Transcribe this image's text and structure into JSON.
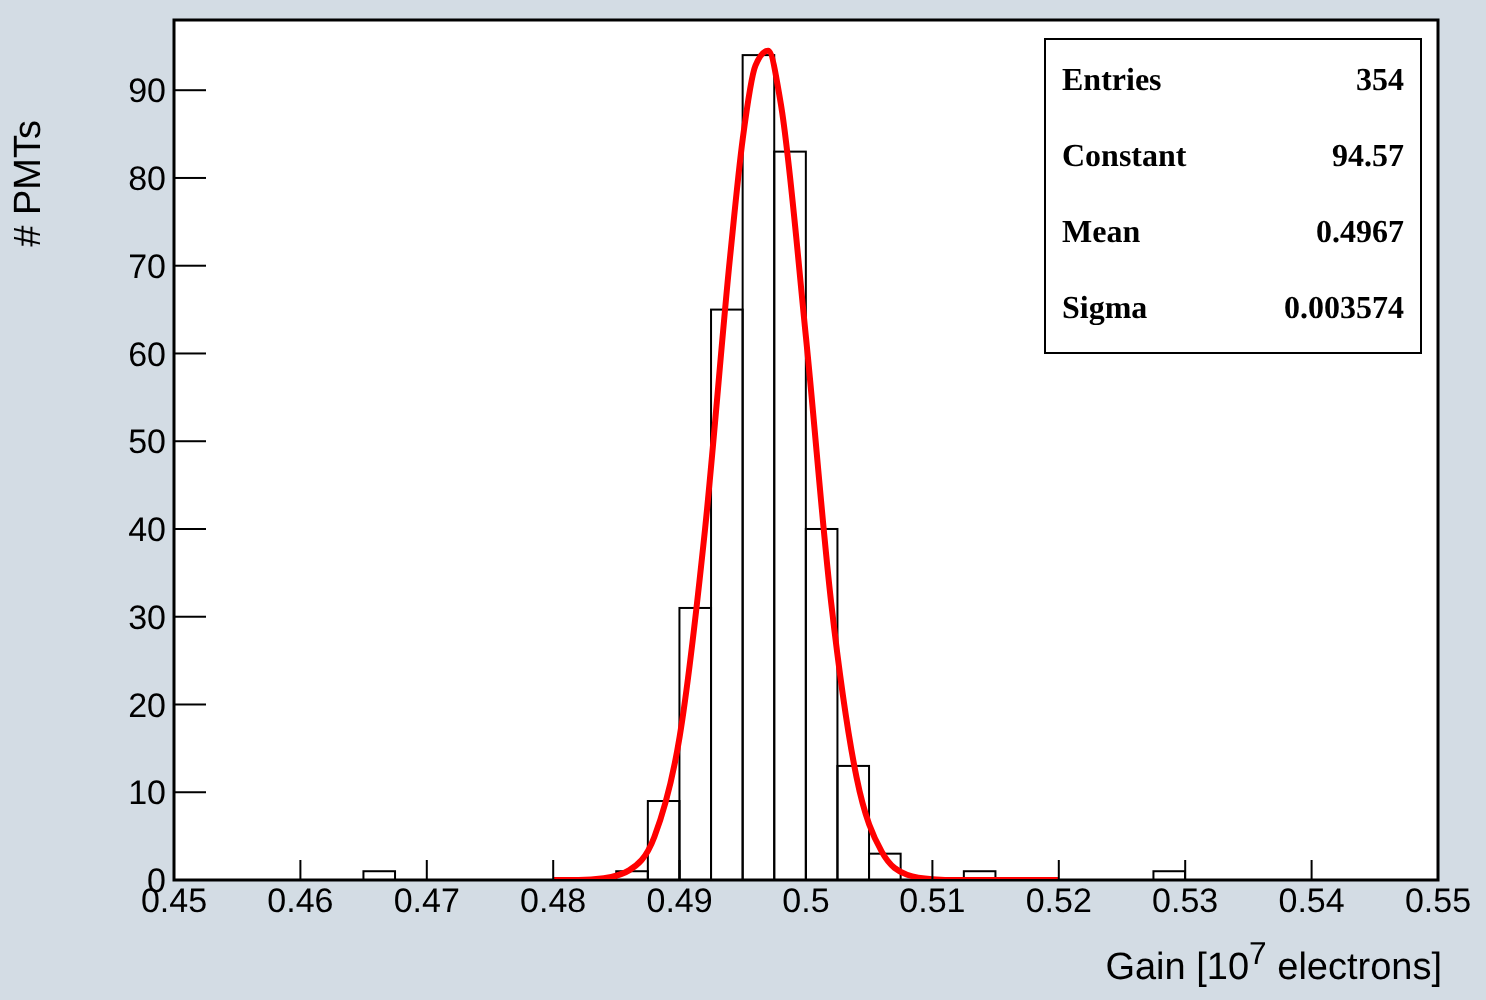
{
  "chart_data": {
    "type": "histogram",
    "xlabel": "Gain [10$^{7}$ electrons]",
    "ylabel": "# PMTs",
    "bins": [
      0.45,
      0.4525,
      0.455,
      0.4575,
      0.46,
      0.4625,
      0.465,
      0.4675,
      0.47,
      0.4725,
      0.475,
      0.4775,
      0.48,
      0.4825,
      0.485,
      0.4875,
      0.49,
      0.4925,
      0.495,
      0.4975,
      0.5,
      0.5025,
      0.505,
      0.5075,
      0.51,
      0.5125,
      0.515,
      0.5175,
      0.52,
      0.5225,
      0.525,
      0.5275,
      0.53,
      0.5325,
      0.535,
      0.5375,
      0.54,
      0.5425,
      0.545,
      0.5475,
      0.55
    ],
    "values": [
      0,
      0,
      0,
      0,
      0,
      0,
      1,
      0,
      0,
      0,
      0,
      0,
      0,
      0,
      1,
      9,
      31,
      65,
      94,
      83,
      40,
      13,
      3,
      0,
      0,
      1,
      0,
      0,
      0,
      0,
      0,
      1,
      0,
      0,
      0,
      0,
      0,
      0,
      0,
      0
    ],
    "color": "#000000",
    "series": [
      {
        "type": "line",
        "color": "#ff0000",
        "x": [
          0.48,
          0.482,
          0.484,
          0.486,
          0.488,
          0.49,
          0.492,
          0.494,
          0.495,
          0.496,
          0.497,
          0.498,
          0.5,
          0.502,
          0.504,
          0.506,
          0.508,
          0.51,
          0.512,
          0.516,
          0.52
        ],
        "values": [
          0,
          0,
          0.2,
          1.1,
          4.9,
          16.3,
          39.8,
          71.1,
          84.5,
          92.8,
          94.5,
          88.5,
          61.8,
          31.5,
          11.7,
          3.2,
          0.6,
          0.1,
          0,
          0,
          0
        ]
      }
    ],
    "xlim": [
      0.45,
      0.55
    ],
    "xticks": [
      0.45,
      0.46,
      0.47,
      0.48,
      0.49,
      0.5,
      0.51,
      0.52,
      0.53,
      0.54,
      0.55
    ],
    "ylim": [
      0,
      98
    ],
    "yticks": [
      0,
      10,
      20,
      30,
      40,
      50,
      60,
      70,
      80,
      90
    ],
    "annotations": [
      "Entries",
      "354",
      "Constant",
      "94.57",
      "Mean",
      "0.4967",
      "Sigma",
      "0.003574"
    ],
    "marker": "none",
    "legend": false
  }
}
